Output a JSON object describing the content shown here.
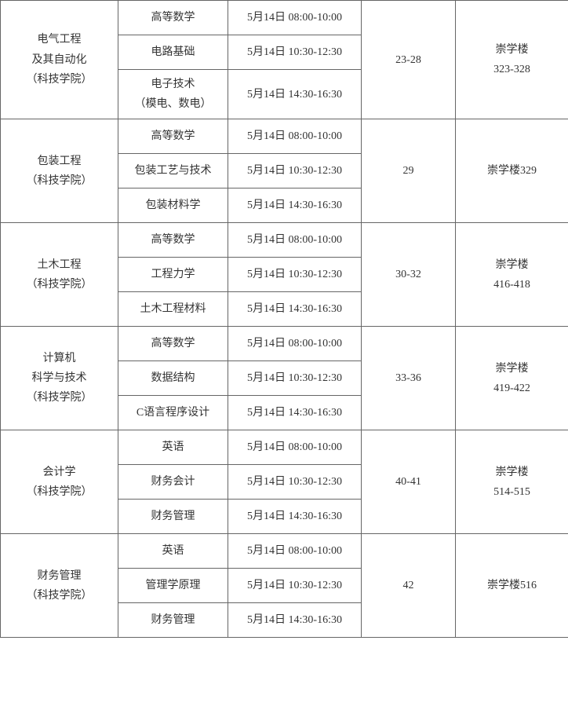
{
  "groups": [
    {
      "major": "电气工程\n及其自动化\n（科技学院）",
      "room": "23-28",
      "location": "崇学楼\n323-328",
      "rows": [
        {
          "subject": "高等数学",
          "time": "5月14日 08:00-10:00"
        },
        {
          "subject": "电路基础",
          "time": "5月14日 10:30-12:30"
        },
        {
          "subject": "电子技术\n（模电、数电）",
          "time": "5月14日 14:30-16:30"
        }
      ]
    },
    {
      "major": "包装工程\n（科技学院）",
      "room": "29",
      "location": "崇学楼329",
      "rows": [
        {
          "subject": "高等数学",
          "time": "5月14日 08:00-10:00"
        },
        {
          "subject": "包装工艺与技术",
          "time": "5月14日 10:30-12:30"
        },
        {
          "subject": "包装材料学",
          "time": "5月14日 14:30-16:30"
        }
      ]
    },
    {
      "major": "土木工程\n（科技学院）",
      "room": "30-32",
      "location": "崇学楼\n416-418",
      "rows": [
        {
          "subject": "高等数学",
          "time": "5月14日 08:00-10:00"
        },
        {
          "subject": "工程力学",
          "time": "5月14日 10:30-12:30"
        },
        {
          "subject": "土木工程材料",
          "time": "5月14日 14:30-16:30"
        }
      ]
    },
    {
      "major": "计算机\n科学与技术\n（科技学院）",
      "room": "33-36",
      "location": "崇学楼\n419-422",
      "rows": [
        {
          "subject": "高等数学",
          "time": "5月14日 08:00-10:00"
        },
        {
          "subject": "数据结构",
          "time": "5月14日 10:30-12:30"
        },
        {
          "subject": "C语言程序设计",
          "time": "5月14日 14:30-16:30"
        }
      ]
    },
    {
      "major": "会计学\n（科技学院）",
      "room": "40-41",
      "location": "崇学楼\n514-515",
      "rows": [
        {
          "subject": "英语",
          "time": "5月14日 08:00-10:00"
        },
        {
          "subject": "财务会计",
          "time": "5月14日 10:30-12:30"
        },
        {
          "subject": "财务管理",
          "time": "5月14日 14:30-16:30"
        }
      ]
    },
    {
      "major": "财务管理\n（科技学院）",
      "room": "42",
      "location": "崇学楼516",
      "rows": [
        {
          "subject": "英语",
          "time": "5月14日 08:00-10:00"
        },
        {
          "subject": "管理学原理",
          "time": "5月14日 10:30-12:30"
        },
        {
          "subject": "财务管理",
          "time": "5月14日 14:30-16:30"
        }
      ]
    }
  ],
  "style": {
    "border_color": "#666666",
    "text_color": "#333333",
    "background": "#ffffff",
    "font_size": 14
  }
}
